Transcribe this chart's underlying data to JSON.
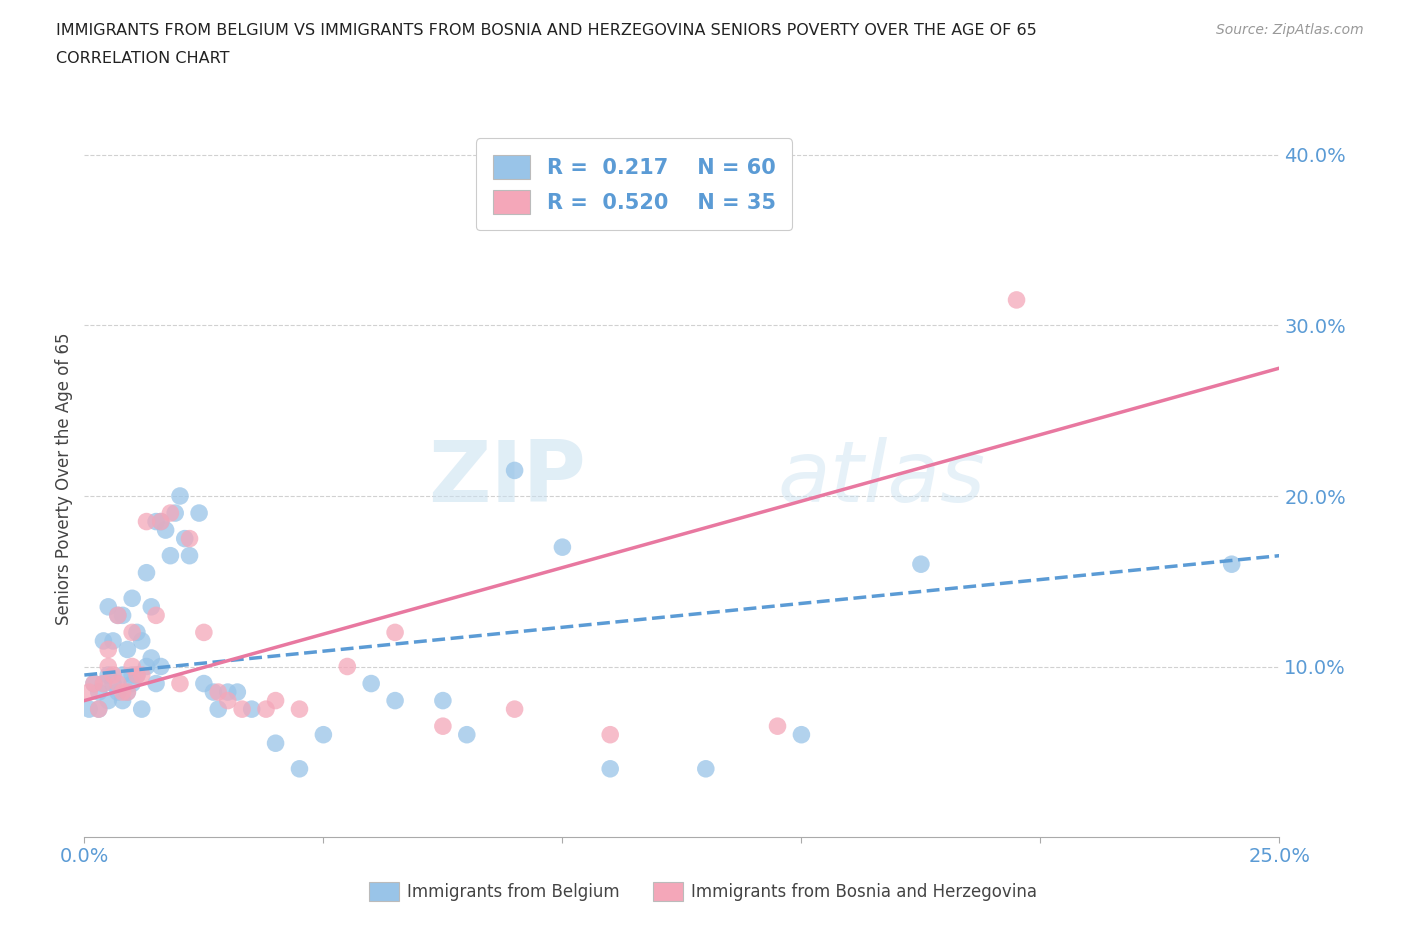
{
  "title_line1": "IMMIGRANTS FROM BELGIUM VS IMMIGRANTS FROM BOSNIA AND HERZEGOVINA SENIORS POVERTY OVER THE AGE OF 65",
  "title_line2": "CORRELATION CHART",
  "source": "Source: ZipAtlas.com",
  "ylabel": "Seniors Poverty Over the Age of 65",
  "xlim": [
    0.0,
    0.25
  ],
  "ylim": [
    0.0,
    0.42
  ],
  "xticks": [
    0.0,
    0.05,
    0.1,
    0.15,
    0.2,
    0.25
  ],
  "xticklabels": [
    "0.0%",
    "",
    "",
    "",
    "",
    "25.0%"
  ],
  "yticks": [
    0.1,
    0.2,
    0.3,
    0.4
  ],
  "yticklabels": [
    "10.0%",
    "20.0%",
    "30.0%",
    "40.0%"
  ],
  "color_belgium": "#99c4e8",
  "color_bosnia": "#f4a7b9",
  "color_belgium_line": "#5b9bd5",
  "color_bosnia_line": "#e878a0",
  "watermark_zip": "ZIP",
  "watermark_atlas": "atlas",
  "legend_R_belgium": "0.217",
  "legend_N_belgium": "60",
  "legend_R_bosnia": "0.520",
  "legend_N_bosnia": "35",
  "bel_line_x0": 0.0,
  "bel_line_y0": 0.095,
  "bel_line_x1": 0.25,
  "bel_line_y1": 0.165,
  "bos_line_x0": 0.0,
  "bos_line_y0": 0.08,
  "bos_line_x1": 0.25,
  "bos_line_y1": 0.275,
  "belgium_scatter_x": [
    0.001,
    0.002,
    0.003,
    0.003,
    0.004,
    0.004,
    0.005,
    0.005,
    0.005,
    0.006,
    0.006,
    0.007,
    0.007,
    0.008,
    0.008,
    0.008,
    0.009,
    0.009,
    0.01,
    0.01,
    0.01,
    0.011,
    0.011,
    0.012,
    0.012,
    0.013,
    0.013,
    0.014,
    0.014,
    0.015,
    0.015,
    0.016,
    0.016,
    0.017,
    0.018,
    0.019,
    0.02,
    0.021,
    0.022,
    0.024,
    0.025,
    0.027,
    0.028,
    0.03,
    0.032,
    0.035,
    0.04,
    0.045,
    0.05,
    0.06,
    0.065,
    0.075,
    0.08,
    0.09,
    0.1,
    0.11,
    0.13,
    0.15,
    0.175,
    0.24
  ],
  "belgium_scatter_y": [
    0.075,
    0.09,
    0.075,
    0.085,
    0.09,
    0.115,
    0.08,
    0.095,
    0.135,
    0.09,
    0.115,
    0.085,
    0.13,
    0.08,
    0.095,
    0.13,
    0.085,
    0.11,
    0.09,
    0.095,
    0.14,
    0.095,
    0.12,
    0.075,
    0.115,
    0.1,
    0.155,
    0.105,
    0.135,
    0.09,
    0.185,
    0.185,
    0.1,
    0.18,
    0.165,
    0.19,
    0.2,
    0.175,
    0.165,
    0.19,
    0.09,
    0.085,
    0.075,
    0.085,
    0.085,
    0.075,
    0.055,
    0.04,
    0.06,
    0.09,
    0.08,
    0.08,
    0.06,
    0.215,
    0.17,
    0.04,
    0.04,
    0.06,
    0.16,
    0.16
  ],
  "bosnia_scatter_x": [
    0.001,
    0.002,
    0.003,
    0.004,
    0.005,
    0.005,
    0.006,
    0.007,
    0.007,
    0.008,
    0.009,
    0.01,
    0.01,
    0.011,
    0.012,
    0.013,
    0.015,
    0.016,
    0.018,
    0.02,
    0.022,
    0.025,
    0.028,
    0.03,
    0.033,
    0.038,
    0.04,
    0.045,
    0.055,
    0.065,
    0.075,
    0.09,
    0.11,
    0.145,
    0.195
  ],
  "bosnia_scatter_y": [
    0.085,
    0.09,
    0.075,
    0.09,
    0.1,
    0.11,
    0.095,
    0.13,
    0.09,
    0.085,
    0.085,
    0.1,
    0.12,
    0.095,
    0.095,
    0.185,
    0.13,
    0.185,
    0.19,
    0.09,
    0.175,
    0.12,
    0.085,
    0.08,
    0.075,
    0.075,
    0.08,
    0.075,
    0.1,
    0.12,
    0.065,
    0.075,
    0.06,
    0.065,
    0.315
  ]
}
